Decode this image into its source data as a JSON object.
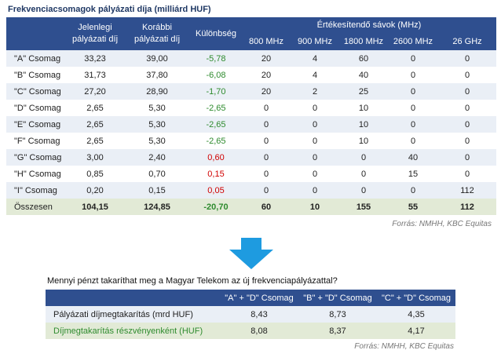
{
  "top": {
    "title": "Frekvenciacsomagok pályázati díja (milliárd HUF)",
    "headers": {
      "current_1": "Jelenlegi",
      "current_2": "pályázati díj",
      "previous_1": "Korábbi",
      "previous_2": "pályázati díj",
      "difference": "Különbség",
      "bands_group": "Értékesítendő sávok (MHz)",
      "b800": "800 MHz",
      "b900": "900 MHz",
      "b1800": "1800 MHz",
      "b2600": "2600 MHz",
      "b26": "26 GHz"
    },
    "rows": [
      {
        "label": "\"A\" Csomag",
        "current": "33,23",
        "previous": "39,00",
        "diff": "-5,78",
        "b800": "20",
        "b900": "4",
        "b1800": "60",
        "b2600": "0",
        "b26": "0"
      },
      {
        "label": "\"B\" Csomag",
        "current": "31,73",
        "previous": "37,80",
        "diff": "-6,08",
        "b800": "20",
        "b900": "4",
        "b1800": "40",
        "b2600": "0",
        "b26": "0"
      },
      {
        "label": "\"C\" Csomag",
        "current": "27,20",
        "previous": "28,90",
        "diff": "-1,70",
        "b800": "20",
        "b900": "2",
        "b1800": "25",
        "b2600": "0",
        "b26": "0"
      },
      {
        "label": "\"D\" Csomag",
        "current": "2,65",
        "previous": "5,30",
        "diff": "-2,65",
        "b800": "0",
        "b900": "0",
        "b1800": "10",
        "b2600": "0",
        "b26": "0"
      },
      {
        "label": "\"E\" Csomag",
        "current": "2,65",
        "previous": "5,30",
        "diff": "-2,65",
        "b800": "0",
        "b900": "0",
        "b1800": "10",
        "b2600": "0",
        "b26": "0"
      },
      {
        "label": "\"F\" Csomag",
        "current": "2,65",
        "previous": "5,30",
        "diff": "-2,65",
        "b800": "0",
        "b900": "0",
        "b1800": "10",
        "b2600": "0",
        "b26": "0"
      },
      {
        "label": "\"G\" Csomag",
        "current": "3,00",
        "previous": "2,40",
        "diff": "0,60",
        "b800": "0",
        "b900": "0",
        "b1800": "0",
        "b2600": "40",
        "b26": "0"
      },
      {
        "label": "\"H\" Csomag",
        "current": "0,85",
        "previous": "0,70",
        "diff": "0,15",
        "b800": "0",
        "b900": "0",
        "b1800": "0",
        "b2600": "15",
        "b26": "0"
      },
      {
        "label": "\"I\" Csomag",
        "current": "0,20",
        "previous": "0,15",
        "diff": "0,05",
        "b800": "0",
        "b900": "0",
        "b1800": "0",
        "b2600": "0",
        "b26": "112"
      }
    ],
    "total": {
      "label": "Összesen",
      "current": "104,15",
      "previous": "124,85",
      "diff": "-20,70",
      "b800": "60",
      "b900": "10",
      "b1800": "155",
      "b2600": "55",
      "b26": "112"
    },
    "source": "Forrás: NMHH, KBC Equitas"
  },
  "bottom": {
    "title": "Mennyi pénzt takaríthat meg a Magyar Telekom az új frekvenciapályázattal?",
    "headers": [
      "\"A\" + \"D\" Csomag",
      "\"B\" + \"D\" Csomag",
      "\"C\" + \"D\" Csomag"
    ],
    "rows": [
      {
        "label": "Pályázati díjmegtakarítás (mrd HUF)",
        "values": [
          "8,43",
          "8,73",
          "4,35"
        ]
      },
      {
        "label": "Díjmegtakarítás részvényenként (HUF)",
        "values": [
          "8,08",
          "8,37",
          "4,17"
        ]
      }
    ],
    "source": "Forrás: NMHH, KBC Equitas"
  },
  "colors": {
    "header_bg": "#2f4f8f",
    "negative": "#2e8b2e",
    "positive": "#d00000",
    "arrow": "#1e9be0"
  },
  "arrow_icon": "down-arrow-icon"
}
